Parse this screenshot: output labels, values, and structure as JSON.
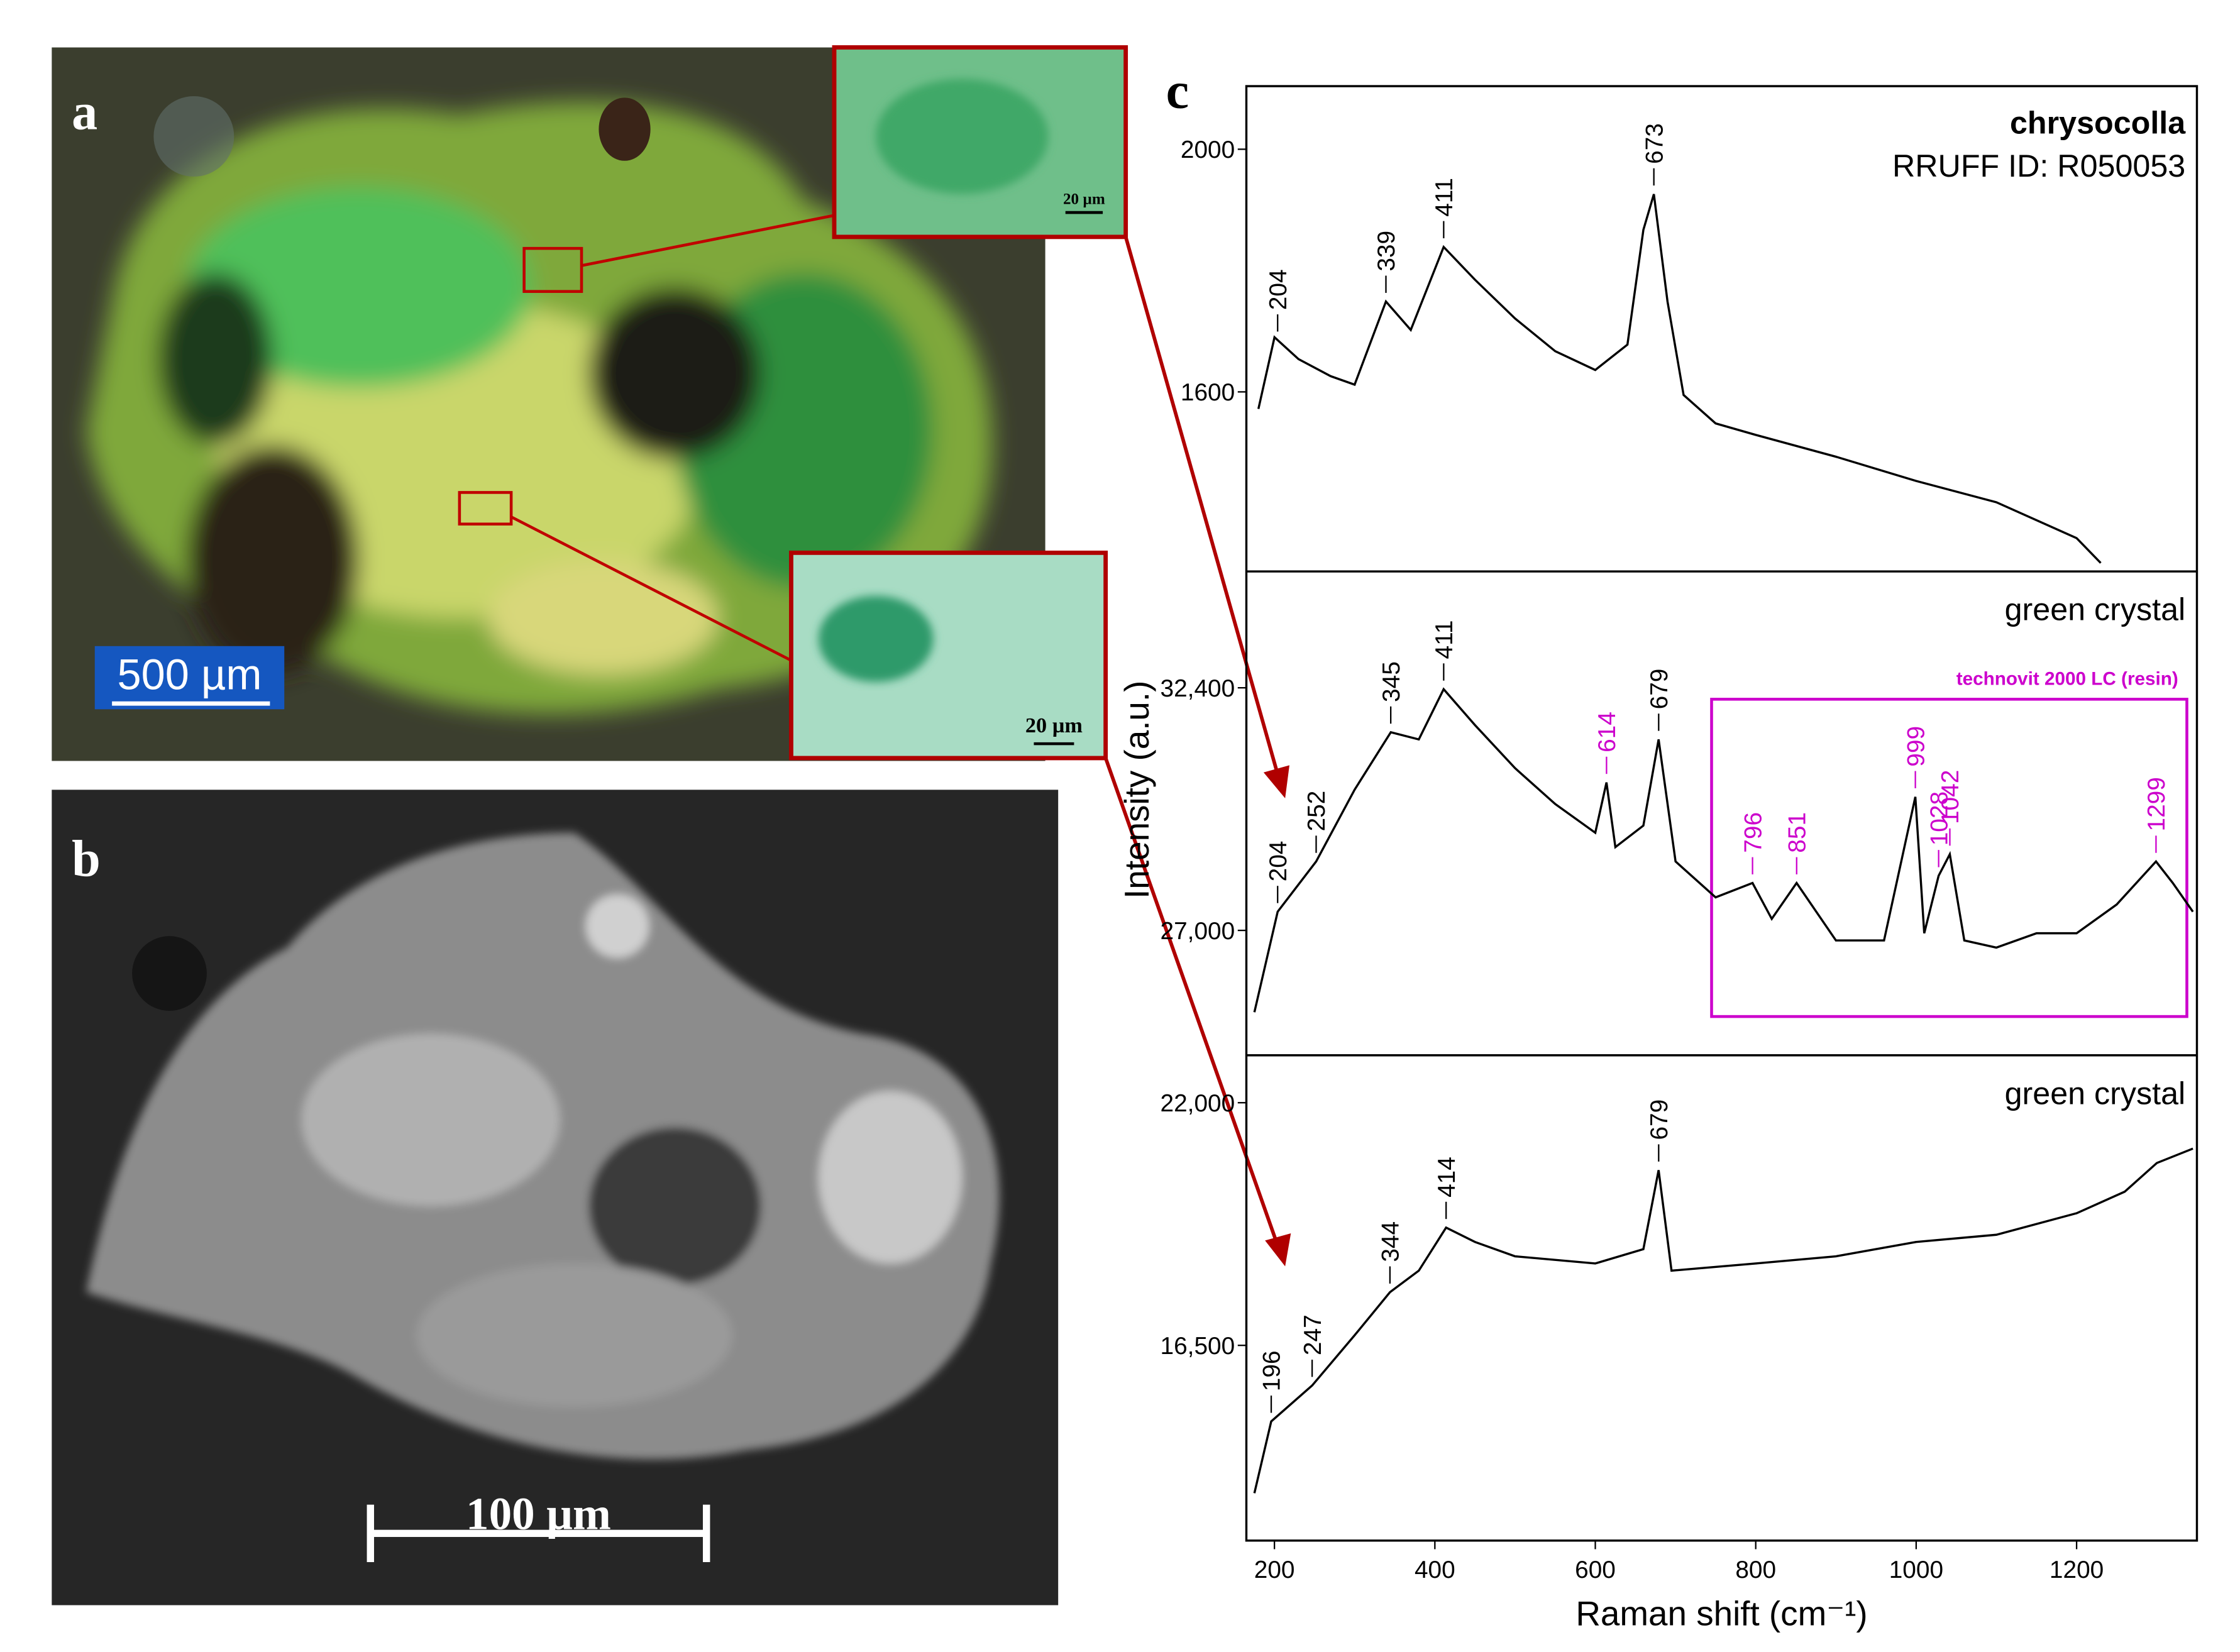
{
  "panels": {
    "a": {
      "label": "a",
      "scale_bar": "500 µm",
      "inset_top_scale": "20 µm",
      "inset_bottom_scale": "20 µm"
    },
    "b": {
      "label": "b",
      "scale_bar": "100 µm"
    },
    "c": {
      "label": "c",
      "ylabel": "Intensity (a.u.)",
      "xlabel": "Raman shift (cm⁻¹)"
    }
  },
  "chart_data": [
    {
      "type": "line",
      "title": "chrysocolla",
      "subtitle": "RRUFF ID: R050053",
      "xlim": [
        165,
        1350
      ],
      "ylim": [
        1304,
        2104
      ],
      "yticks": [
        1600,
        2000
      ],
      "x": [
        180,
        200,
        230,
        270,
        300,
        339,
        370,
        411,
        450,
        500,
        550,
        600,
        640,
        660,
        673,
        690,
        710,
        750,
        800,
        900,
        1000,
        1100,
        1200,
        1230
      ],
      "series": [
        {
          "color": "#000000",
          "values": [
            1572,
            1690,
            1654,
            1626,
            1612,
            1749,
            1702,
            1839,
            1785,
            1721,
            1667,
            1636,
            1678,
            1867,
            1926,
            1749,
            1595,
            1548,
            1529,
            1493,
            1453,
            1418,
            1359,
            1318
          ]
        }
      ],
      "peak_labels": [
        204,
        339,
        411,
        673
      ]
    },
    {
      "type": "line",
      "title": "green crystal",
      "xlim": [
        165,
        1350
      ],
      "ylim": [
        24220,
        34990
      ],
      "yticks": [
        {
          "value": 27000,
          "label": "27,000"
        },
        {
          "value": 32400,
          "label": "32,400"
        }
      ],
      "x": [
        175,
        204,
        252,
        300,
        345,
        380,
        411,
        450,
        500,
        550,
        600,
        614,
        625,
        660,
        679,
        700,
        750,
        796,
        820,
        851,
        900,
        960,
        999,
        1010,
        1028,
        1042,
        1060,
        1100,
        1150,
        1200,
        1250,
        1299,
        1320,
        1345
      ],
      "series": [
        {
          "color": "#000000",
          "values": [
            25179,
            27416,
            28534,
            30132,
            31410,
            31250,
            32368,
            31569,
            30611,
            29812,
            29173,
            30291,
            28854,
            29333,
            31250,
            28534,
            27735,
            28055,
            27256,
            28055,
            26777,
            26777,
            29972,
            26937,
            28215,
            28694,
            26777,
            26617,
            26937,
            26937,
            27576,
            28534,
            28055,
            27416
          ]
        }
      ],
      "peak_labels": [
        204,
        252,
        345,
        411,
        679
      ],
      "resin_peaks": [
        614,
        796,
        851,
        999,
        1028,
        1042,
        1299
      ],
      "resin_color": "#cc00cc",
      "annotation": "technovit 2000 LC (resin)"
    },
    {
      "type": "line",
      "title": "green crystal",
      "xlim": [
        165,
        1350
      ],
      "ylim": [
        12075,
        23075
      ],
      "yticks": [
        {
          "value": 16500,
          "label": "16,500"
        },
        {
          "value": 22000,
          "label": "22,000"
        }
      ],
      "xticks": [
        200,
        400,
        600,
        800,
        1000,
        1200
      ],
      "x": [
        175,
        196,
        247,
        300,
        344,
        380,
        414,
        450,
        500,
        600,
        660,
        679,
        695,
        800,
        900,
        1000,
        1100,
        1200,
        1260,
        1300,
        1345
      ],
      "series": [
        {
          "color": "#000000",
          "values": [
            13149,
            14776,
            15590,
            16729,
            17705,
            18193,
            19169,
            18844,
            18518,
            18356,
            18681,
            20471,
            18193,
            18356,
            18518,
            18844,
            19006,
            19494,
            19983,
            20633,
            20959
          ]
        }
      ],
      "peak_labels": [
        196,
        247,
        344,
        414,
        679
      ]
    }
  ]
}
